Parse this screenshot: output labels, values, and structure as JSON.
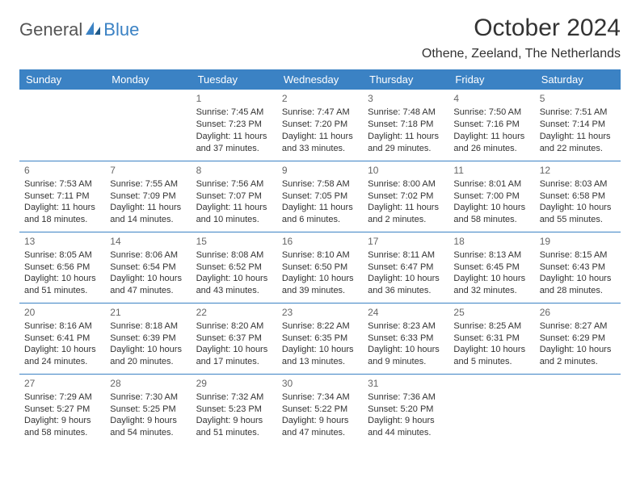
{
  "logo": {
    "part1": "General",
    "part2": "Blue"
  },
  "title": "October 2024",
  "location": "Othene, Zeeland, The Netherlands",
  "colors": {
    "header_bg": "#3b82c4",
    "header_text": "#ffffff",
    "row_border": "#3b82c4",
    "text": "#333333",
    "logo_blue": "#3b82c4",
    "logo_gray": "#555555",
    "background": "#ffffff"
  },
  "weekdays": [
    "Sunday",
    "Monday",
    "Tuesday",
    "Wednesday",
    "Thursday",
    "Friday",
    "Saturday"
  ],
  "weeks": [
    [
      null,
      null,
      {
        "n": "1",
        "sr": "Sunrise: 7:45 AM",
        "ss": "Sunset: 7:23 PM",
        "dl": "Daylight: 11 hours and 37 minutes."
      },
      {
        "n": "2",
        "sr": "Sunrise: 7:47 AM",
        "ss": "Sunset: 7:20 PM",
        "dl": "Daylight: 11 hours and 33 minutes."
      },
      {
        "n": "3",
        "sr": "Sunrise: 7:48 AM",
        "ss": "Sunset: 7:18 PM",
        "dl": "Daylight: 11 hours and 29 minutes."
      },
      {
        "n": "4",
        "sr": "Sunrise: 7:50 AM",
        "ss": "Sunset: 7:16 PM",
        "dl": "Daylight: 11 hours and 26 minutes."
      },
      {
        "n": "5",
        "sr": "Sunrise: 7:51 AM",
        "ss": "Sunset: 7:14 PM",
        "dl": "Daylight: 11 hours and 22 minutes."
      }
    ],
    [
      {
        "n": "6",
        "sr": "Sunrise: 7:53 AM",
        "ss": "Sunset: 7:11 PM",
        "dl": "Daylight: 11 hours and 18 minutes."
      },
      {
        "n": "7",
        "sr": "Sunrise: 7:55 AM",
        "ss": "Sunset: 7:09 PM",
        "dl": "Daylight: 11 hours and 14 minutes."
      },
      {
        "n": "8",
        "sr": "Sunrise: 7:56 AM",
        "ss": "Sunset: 7:07 PM",
        "dl": "Daylight: 11 hours and 10 minutes."
      },
      {
        "n": "9",
        "sr": "Sunrise: 7:58 AM",
        "ss": "Sunset: 7:05 PM",
        "dl": "Daylight: 11 hours and 6 minutes."
      },
      {
        "n": "10",
        "sr": "Sunrise: 8:00 AM",
        "ss": "Sunset: 7:02 PM",
        "dl": "Daylight: 11 hours and 2 minutes."
      },
      {
        "n": "11",
        "sr": "Sunrise: 8:01 AM",
        "ss": "Sunset: 7:00 PM",
        "dl": "Daylight: 10 hours and 58 minutes."
      },
      {
        "n": "12",
        "sr": "Sunrise: 8:03 AM",
        "ss": "Sunset: 6:58 PM",
        "dl": "Daylight: 10 hours and 55 minutes."
      }
    ],
    [
      {
        "n": "13",
        "sr": "Sunrise: 8:05 AM",
        "ss": "Sunset: 6:56 PM",
        "dl": "Daylight: 10 hours and 51 minutes."
      },
      {
        "n": "14",
        "sr": "Sunrise: 8:06 AM",
        "ss": "Sunset: 6:54 PM",
        "dl": "Daylight: 10 hours and 47 minutes."
      },
      {
        "n": "15",
        "sr": "Sunrise: 8:08 AM",
        "ss": "Sunset: 6:52 PM",
        "dl": "Daylight: 10 hours and 43 minutes."
      },
      {
        "n": "16",
        "sr": "Sunrise: 8:10 AM",
        "ss": "Sunset: 6:50 PM",
        "dl": "Daylight: 10 hours and 39 minutes."
      },
      {
        "n": "17",
        "sr": "Sunrise: 8:11 AM",
        "ss": "Sunset: 6:47 PM",
        "dl": "Daylight: 10 hours and 36 minutes."
      },
      {
        "n": "18",
        "sr": "Sunrise: 8:13 AM",
        "ss": "Sunset: 6:45 PM",
        "dl": "Daylight: 10 hours and 32 minutes."
      },
      {
        "n": "19",
        "sr": "Sunrise: 8:15 AM",
        "ss": "Sunset: 6:43 PM",
        "dl": "Daylight: 10 hours and 28 minutes."
      }
    ],
    [
      {
        "n": "20",
        "sr": "Sunrise: 8:16 AM",
        "ss": "Sunset: 6:41 PM",
        "dl": "Daylight: 10 hours and 24 minutes."
      },
      {
        "n": "21",
        "sr": "Sunrise: 8:18 AM",
        "ss": "Sunset: 6:39 PM",
        "dl": "Daylight: 10 hours and 20 minutes."
      },
      {
        "n": "22",
        "sr": "Sunrise: 8:20 AM",
        "ss": "Sunset: 6:37 PM",
        "dl": "Daylight: 10 hours and 17 minutes."
      },
      {
        "n": "23",
        "sr": "Sunrise: 8:22 AM",
        "ss": "Sunset: 6:35 PM",
        "dl": "Daylight: 10 hours and 13 minutes."
      },
      {
        "n": "24",
        "sr": "Sunrise: 8:23 AM",
        "ss": "Sunset: 6:33 PM",
        "dl": "Daylight: 10 hours and 9 minutes."
      },
      {
        "n": "25",
        "sr": "Sunrise: 8:25 AM",
        "ss": "Sunset: 6:31 PM",
        "dl": "Daylight: 10 hours and 5 minutes."
      },
      {
        "n": "26",
        "sr": "Sunrise: 8:27 AM",
        "ss": "Sunset: 6:29 PM",
        "dl": "Daylight: 10 hours and 2 minutes."
      }
    ],
    [
      {
        "n": "27",
        "sr": "Sunrise: 7:29 AM",
        "ss": "Sunset: 5:27 PM",
        "dl": "Daylight: 9 hours and 58 minutes."
      },
      {
        "n": "28",
        "sr": "Sunrise: 7:30 AM",
        "ss": "Sunset: 5:25 PM",
        "dl": "Daylight: 9 hours and 54 minutes."
      },
      {
        "n": "29",
        "sr": "Sunrise: 7:32 AM",
        "ss": "Sunset: 5:23 PM",
        "dl": "Daylight: 9 hours and 51 minutes."
      },
      {
        "n": "30",
        "sr": "Sunrise: 7:34 AM",
        "ss": "Sunset: 5:22 PM",
        "dl": "Daylight: 9 hours and 47 minutes."
      },
      {
        "n": "31",
        "sr": "Sunrise: 7:36 AM",
        "ss": "Sunset: 5:20 PM",
        "dl": "Daylight: 9 hours and 44 minutes."
      },
      null,
      null
    ]
  ]
}
